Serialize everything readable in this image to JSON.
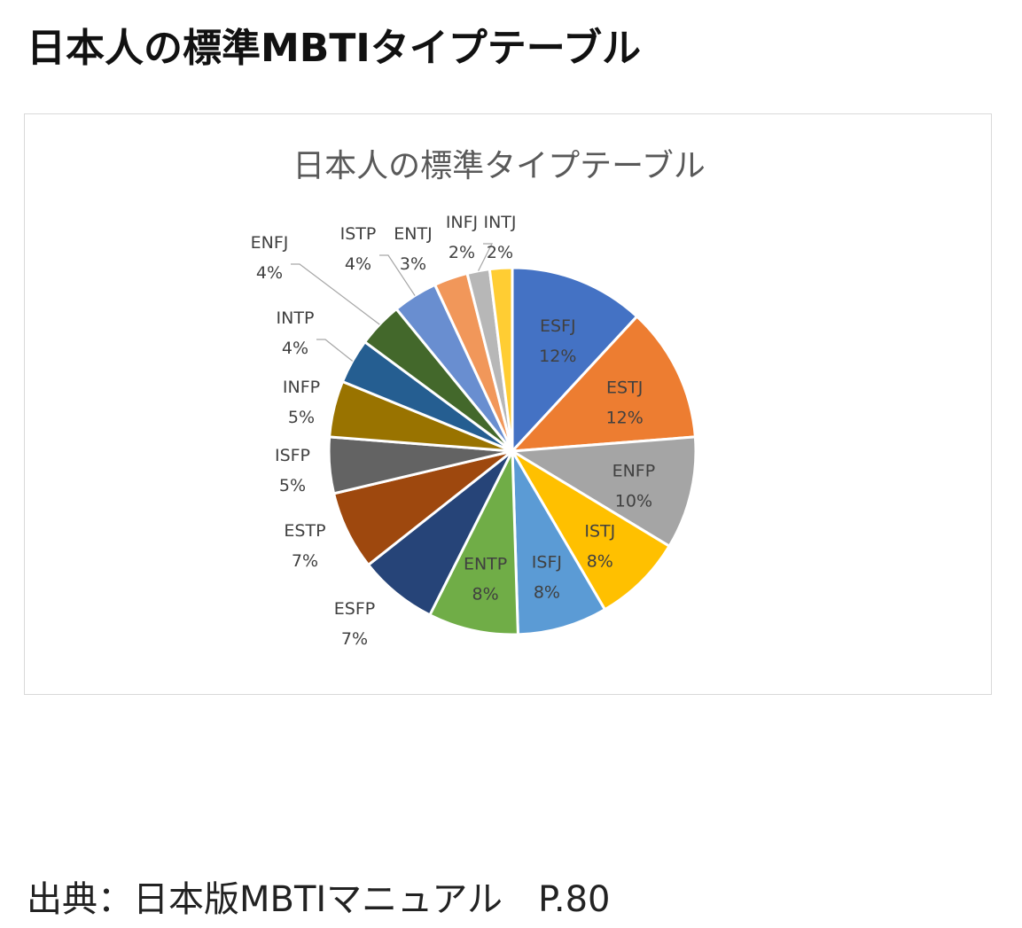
{
  "page_title": "日本人の標準MBTIタイプテーブル",
  "source_text": "出典：日本版MBTIマニュアル　P.80",
  "chart_data": {
    "type": "pie",
    "title": "日本人の標準タイプテーブル",
    "start_angle_deg": 0,
    "direction": "clockwise",
    "slices": [
      {
        "label": "ESFJ",
        "value": 12,
        "percent_label": "12%",
        "color": "#4472C4",
        "label_pos": "inside"
      },
      {
        "label": "ESTJ",
        "value": 12,
        "percent_label": "12%",
        "color": "#ED7D31",
        "label_pos": "inside"
      },
      {
        "label": "ENFP",
        "value": 10,
        "percent_label": "10%",
        "color": "#A5A5A5",
        "label_pos": "inside"
      },
      {
        "label": "ISTJ",
        "value": 8,
        "percent_label": "8%",
        "color": "#FFC000",
        "label_pos": "inside"
      },
      {
        "label": "ISFJ",
        "value": 8,
        "percent_label": "8%",
        "color": "#5B9BD5",
        "label_pos": "inside"
      },
      {
        "label": "ENTP",
        "value": 8,
        "percent_label": "8%",
        "color": "#70AD47",
        "label_pos": "inside"
      },
      {
        "label": "ESFP",
        "value": 7,
        "percent_label": "7%",
        "color": "#264478",
        "label_pos": "outside"
      },
      {
        "label": "ESTP",
        "value": 7,
        "percent_label": "7%",
        "color": "#9E480E",
        "label_pos": "outside"
      },
      {
        "label": "ISFP",
        "value": 5,
        "percent_label": "5%",
        "color": "#636363",
        "label_pos": "outside"
      },
      {
        "label": "INFP",
        "value": 5,
        "percent_label": "5%",
        "color": "#997300",
        "label_pos": "outside"
      },
      {
        "label": "INTP",
        "value": 4,
        "percent_label": "4%",
        "color": "#255E91",
        "label_pos": "outside"
      },
      {
        "label": "ENFJ",
        "value": 4,
        "percent_label": "4%",
        "color": "#43682B",
        "label_pos": "outside"
      },
      {
        "label": "ISTP",
        "value": 4,
        "percent_label": "4%",
        "color": "#698ED0",
        "label_pos": "outside"
      },
      {
        "label": "ENTJ",
        "value": 3,
        "percent_label": "3%",
        "color": "#F1975A",
        "label_pos": "outside"
      },
      {
        "label": "INFJ",
        "value": 2,
        "percent_label": "2%",
        "color": "#B7B7B7",
        "label_pos": "outside"
      },
      {
        "label": "INTJ",
        "value": 2,
        "percent_label": "2%",
        "color": "#FFCD33",
        "label_pos": "outside"
      }
    ]
  }
}
